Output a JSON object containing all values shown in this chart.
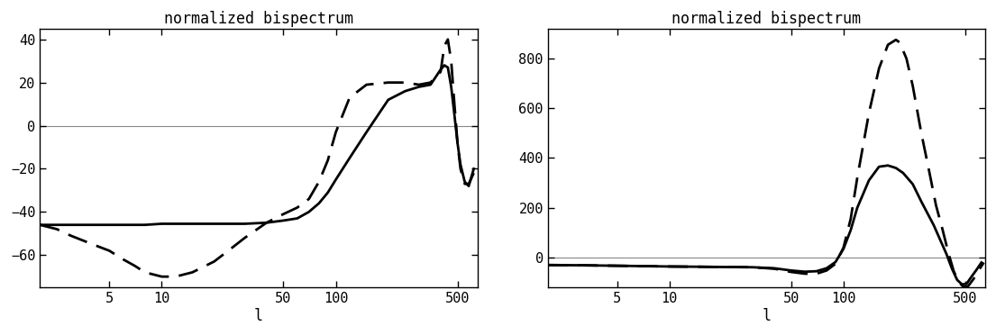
{
  "title": "normalized bispectrum",
  "xlabel": "l",
  "panel1": {
    "ylim": [
      -75,
      45
    ],
    "yticks": [
      -60,
      -40,
      -20,
      0,
      20,
      40
    ],
    "xlim_log": [
      2.0,
      650
    ],
    "xticks": [
      5,
      10,
      50,
      100,
      500
    ],
    "xticklabels": [
      "5",
      "10",
      "50",
      "100",
      "500"
    ],
    "solid_x": [
      2,
      2.5,
      3,
      4,
      5,
      6,
      7,
      8,
      10,
      12,
      15,
      20,
      25,
      30,
      40,
      50,
      60,
      70,
      80,
      90,
      100,
      120,
      150,
      200,
      250,
      300,
      350,
      400,
      420,
      440,
      460,
      480,
      500,
      520,
      550,
      580,
      620
    ],
    "solid_y": [
      -46,
      -46,
      -46,
      -46,
      -46,
      -46,
      -46,
      -46,
      -45.5,
      -45.5,
      -45.5,
      -45.5,
      -45.5,
      -45.5,
      -45,
      -44,
      -43,
      -40,
      -36,
      -31,
      -25,
      -15,
      -3,
      12,
      16,
      18,
      19,
      26,
      28,
      27,
      18,
      5,
      -8,
      -18,
      -26,
      -28,
      -20
    ],
    "dashed_x": [
      2,
      2.5,
      3,
      4,
      5,
      6,
      7,
      8,
      10,
      12,
      15,
      20,
      25,
      30,
      40,
      50,
      60,
      70,
      80,
      90,
      100,
      120,
      150,
      200,
      250,
      300,
      350,
      400,
      420,
      440,
      460,
      480,
      500,
      520,
      550,
      580,
      620
    ],
    "dashed_y": [
      -46,
      -48,
      -51,
      -55,
      -58,
      -62,
      -65,
      -68,
      -70,
      -70,
      -68,
      -63,
      -57,
      -52,
      -45,
      -41,
      -38,
      -34,
      -26,
      -16,
      -3,
      13,
      19,
      20,
      20,
      19,
      20,
      25,
      37,
      40,
      30,
      10,
      -8,
      -20,
      -27,
      -27,
      -22
    ]
  },
  "panel2": {
    "ylim": [
      -120,
      920
    ],
    "yticks": [
      0,
      200,
      400,
      600,
      800
    ],
    "xlim_log": [
      2.0,
      650
    ],
    "xticks": [
      5,
      10,
      50,
      100,
      500
    ],
    "xticklabels": [
      "5",
      "10",
      "50",
      "100",
      "500"
    ],
    "solid_x": [
      2,
      3,
      5,
      8,
      10,
      15,
      20,
      30,
      40,
      50,
      60,
      70,
      80,
      90,
      100,
      110,
      120,
      140,
      160,
      180,
      200,
      220,
      250,
      280,
      300,
      330,
      360,
      390,
      420,
      450,
      480,
      510,
      540,
      580,
      620
    ],
    "solid_y": [
      -30,
      -31,
      -33,
      -35,
      -36,
      -37,
      -38,
      -39,
      -43,
      -52,
      -57,
      -55,
      -43,
      -18,
      35,
      110,
      200,
      310,
      365,
      370,
      360,
      340,
      295,
      225,
      185,
      130,
      70,
      15,
      -45,
      -90,
      -108,
      -105,
      -80,
      -50,
      -20
    ],
    "dashed_x": [
      2,
      3,
      5,
      8,
      10,
      15,
      20,
      30,
      40,
      50,
      60,
      70,
      80,
      90,
      100,
      110,
      120,
      140,
      160,
      180,
      200,
      210,
      230,
      250,
      280,
      310,
      340,
      370,
      400,
      430,
      460,
      490,
      520,
      560,
      600,
      640
    ],
    "dashed_y": [
      -30,
      -31,
      -33,
      -35,
      -36,
      -37,
      -38,
      -39,
      -45,
      -58,
      -65,
      -65,
      -52,
      -25,
      40,
      155,
      320,
      580,
      760,
      855,
      875,
      865,
      800,
      690,
      500,
      350,
      210,
      115,
      20,
      -55,
      -100,
      -118,
      -115,
      -85,
      -50,
      -20
    ]
  },
  "line_color": "#000000",
  "zero_line_color": "#888888",
  "background_color": "#ffffff",
  "title_fontsize": 12,
  "label_fontsize": 12,
  "tick_fontsize": 11
}
